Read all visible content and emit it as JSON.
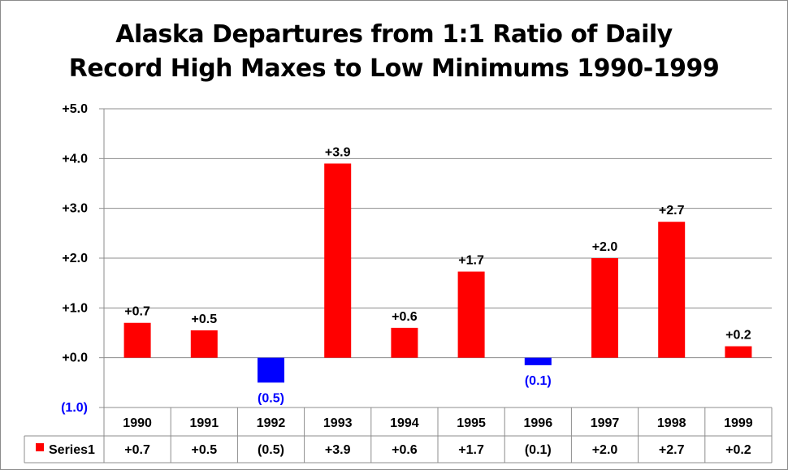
{
  "chart_data": {
    "type": "bar",
    "title_lines": [
      "Alaska Departures from 1:1 Ratio of Daily",
      "Record High Maxes to Low Minimums 1990-1999"
    ],
    "categories": [
      "1990",
      "1991",
      "1992",
      "1993",
      "1994",
      "1995",
      "1996",
      "1997",
      "1998",
      "1999"
    ],
    "series": [
      {
        "name": "Series1",
        "values": [
          0.7,
          0.55,
          -0.5,
          3.9,
          0.6,
          1.73,
          -0.15,
          2.0,
          2.73,
          0.23
        ],
        "data_labels": [
          "+0.7",
          "+0.5",
          "(0.5)",
          "+3.9",
          "+0.6",
          "+1.7",
          "(0.1)",
          "+2.0",
          "+2.7",
          "+0.2"
        ],
        "positive_color": "#ff0000",
        "negative_color": "#0000ff"
      }
    ],
    "ylim": [
      -1.0,
      5.0
    ],
    "yticks": [
      5.0,
      4.0,
      3.0,
      2.0,
      1.0,
      0.0,
      -1.0
    ],
    "ytick_labels": [
      "+5.0",
      "+4.0",
      "+3.0",
      "+2.0",
      "+1.0",
      "+0.0",
      "(1.0)"
    ],
    "grid": true,
    "data_table": true,
    "xlabel": "",
    "ylabel": ""
  }
}
